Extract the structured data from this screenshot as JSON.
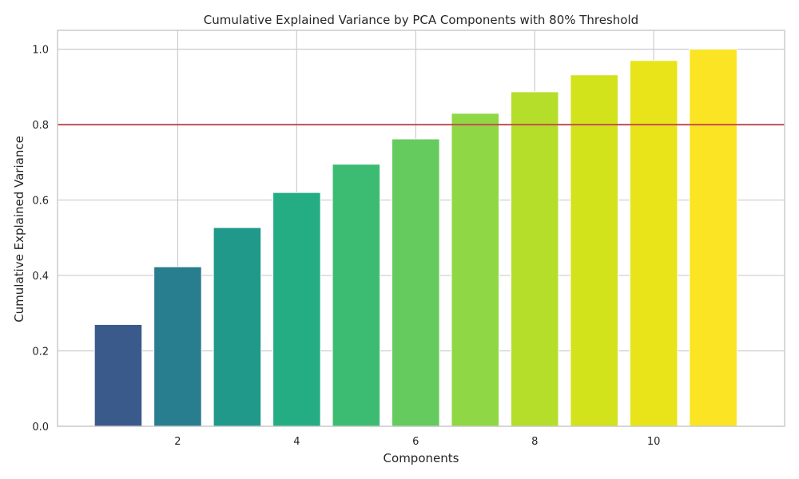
{
  "chart_data": {
    "type": "bar",
    "title": "Cumulative Explained Variance by PCA Components with 80% Threshold",
    "xlabel": "Components",
    "ylabel": "Cumulative Explained Variance",
    "x": [
      1,
      2,
      3,
      4,
      5,
      6,
      7,
      8,
      9,
      10,
      11
    ],
    "values": [
      0.27,
      0.423,
      0.527,
      0.62,
      0.695,
      0.762,
      0.83,
      0.887,
      0.932,
      0.97,
      1.0
    ],
    "colors": [
      "#3a5a8c",
      "#287d8e",
      "#20998a",
      "#24ad82",
      "#3cbc72",
      "#65cb5e",
      "#8fd744",
      "#b5de2b",
      "#d2e21b",
      "#e8e419",
      "#fbe423"
    ],
    "threshold": {
      "value": 0.8,
      "color": "#c44e52"
    },
    "xlim": [
      -0.02,
      12.2
    ],
    "ylim": [
      0,
      1.05
    ],
    "xticks": [
      "2",
      "4",
      "6",
      "8",
      "10"
    ],
    "xtick_values": [
      2,
      4,
      6,
      8,
      10
    ],
    "yticks": [
      "0.0",
      "0.2",
      "0.4",
      "0.6",
      "0.8",
      "1.0"
    ],
    "ytick_values": [
      0,
      0.2,
      0.4,
      0.6,
      0.8,
      1.0
    ],
    "grid": true,
    "legend": "none"
  }
}
